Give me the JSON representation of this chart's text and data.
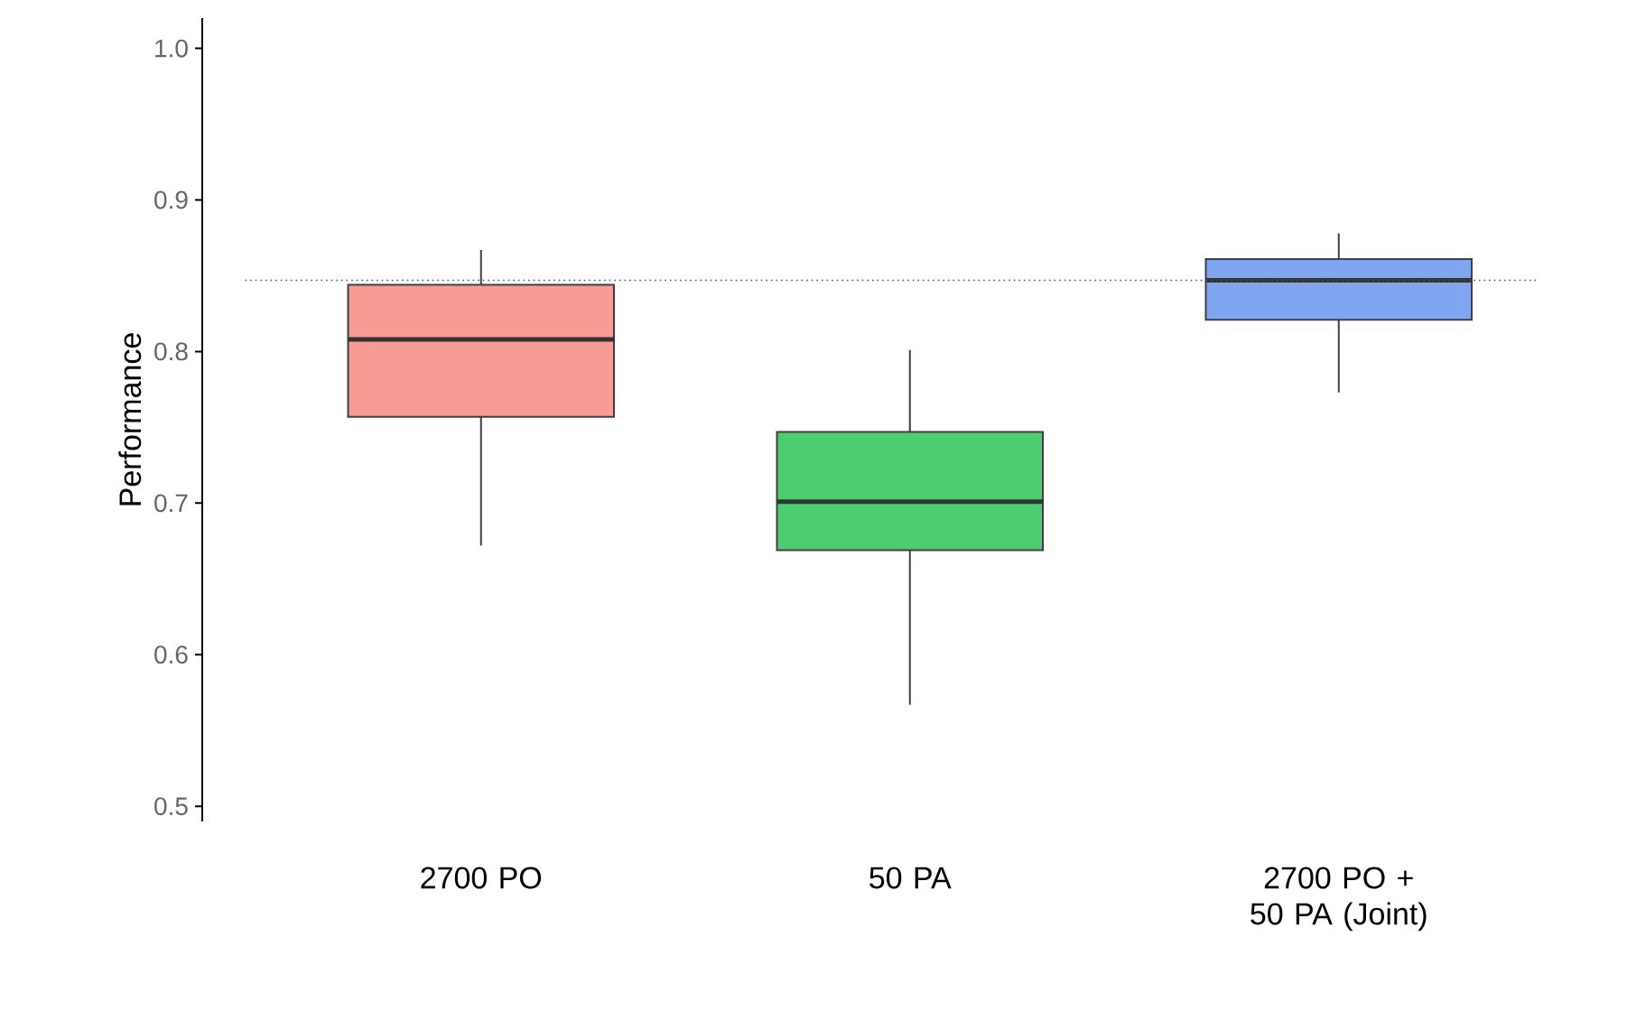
{
  "chart_data": {
    "type": "box",
    "ylabel": "Performance",
    "categories": [
      "2700 PO",
      "50 PA",
      "2700 PO + 50 PA (Joint)"
    ],
    "colors": [
      "#f99b95",
      "#4ccd70",
      "#80a6f2"
    ],
    "boxes": [
      {
        "low": 0.672,
        "q1": 0.757,
        "median": 0.808,
        "q3": 0.844,
        "high": 0.867
      },
      {
        "low": 0.567,
        "q1": 0.669,
        "median": 0.701,
        "q3": 0.747,
        "high": 0.801
      },
      {
        "low": 0.773,
        "q1": 0.821,
        "median": 0.847,
        "q3": 0.861,
        "high": 0.878
      }
    ],
    "ylim": [
      0.49,
      1.02
    ],
    "yticks": [
      0.5,
      0.6,
      0.7,
      0.8,
      0.9,
      {
        "value": 1.0,
        "label": "1.0"
      }
    ],
    "ref_lines": [
      {
        "axis": "y",
        "value": 0.847,
        "color": "#3b5a7a",
        "line_style": "dotted"
      }
    ],
    "grid": false
  }
}
